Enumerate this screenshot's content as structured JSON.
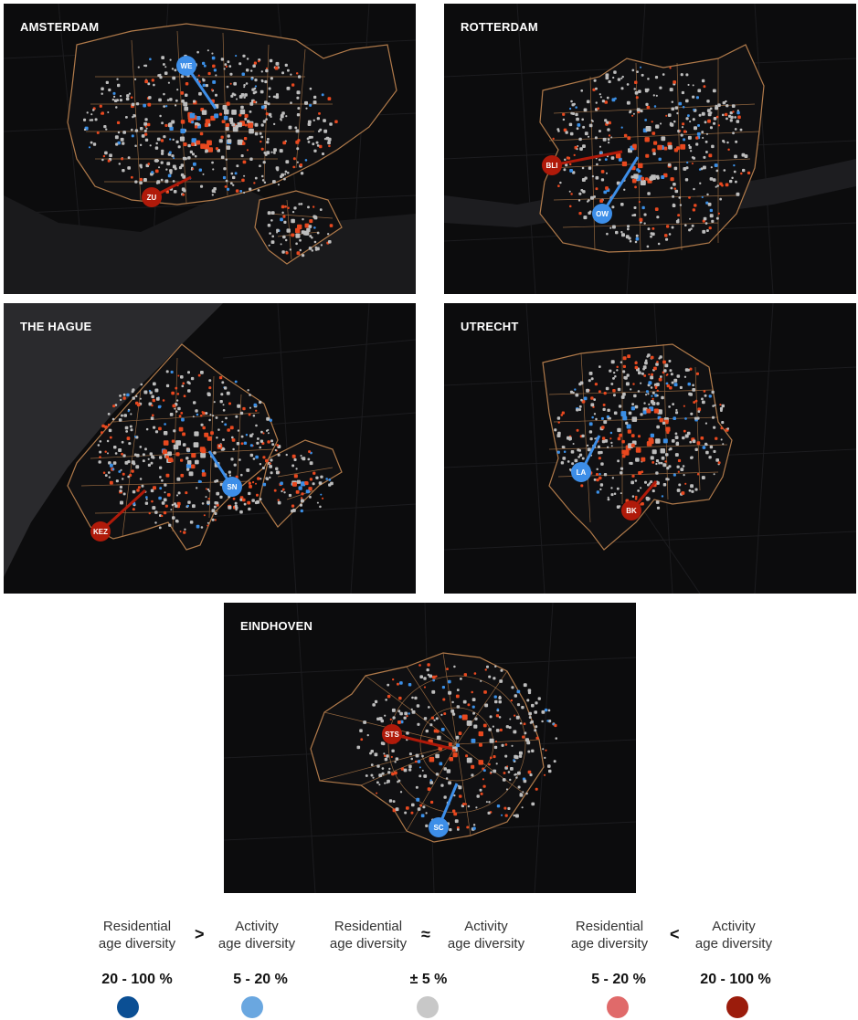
{
  "colors": {
    "map_background": "#0c0c0d",
    "boundary": "#b07a4a",
    "residential_high": "#0b4f94",
    "residential_low": "#5aa0e6",
    "neutral": "#c8c8c8",
    "activity_low": "#e86a6a",
    "activity_high": "#9b1c0c",
    "dot_red": "#e8481f",
    "dot_blue": "#3b8fe6",
    "dot_gray": "#bdbdbd",
    "pin_blue": "#3d8ee8",
    "pin_red": "#b01a0a"
  },
  "cities": [
    {
      "id": "amsterdam",
      "title": "AMSTERDAM",
      "pins": [
        {
          "label": "WE",
          "color": "blue"
        },
        {
          "label": "ZU",
          "color": "red"
        }
      ]
    },
    {
      "id": "rotterdam",
      "title": "ROTTERDAM",
      "pins": [
        {
          "label": "BLI",
          "color": "red"
        },
        {
          "label": "OW",
          "color": "blue"
        }
      ]
    },
    {
      "id": "the-hague",
      "title": "THE HAGUE",
      "pins": [
        {
          "label": "SN",
          "color": "blue"
        },
        {
          "label": "KEZ",
          "color": "red"
        }
      ]
    },
    {
      "id": "utrecht",
      "title": "UTRECHT",
      "pins": [
        {
          "label": "LA",
          "color": "blue"
        },
        {
          "label": "BK",
          "color": "red"
        }
      ]
    },
    {
      "id": "eindhoven",
      "title": "EINDHOVEN",
      "pins": [
        {
          "label": "STS",
          "color": "red"
        },
        {
          "label": "SC",
          "color": "blue"
        }
      ]
    }
  ],
  "legend": {
    "groups": [
      {
        "left_line1": "Residential",
        "left_line2": "age diversity",
        "operator": ">",
        "right_line1": "Activity",
        "right_line2": "age diversity"
      },
      {
        "left_line1": "Residential",
        "left_line2": "age diversity",
        "operator": "≈",
        "right_line1": "Activity",
        "right_line2": "age diversity"
      },
      {
        "left_line1": "Residential",
        "left_line2": "age diversity",
        "operator": "<",
        "right_line1": "Activity",
        "right_line2": "age diversity"
      }
    ],
    "classes": [
      {
        "range": "20 - 100 %",
        "color": "#0b4f94"
      },
      {
        "range": "5 - 20 %",
        "color": "#6aa7e0"
      },
      {
        "range": "± 5 %",
        "color": "#c8c8c8"
      },
      {
        "range": "5 - 20 %",
        "color": "#e06a6a"
      },
      {
        "range": "20 - 100 %",
        "color": "#9b1c0c"
      }
    ]
  }
}
